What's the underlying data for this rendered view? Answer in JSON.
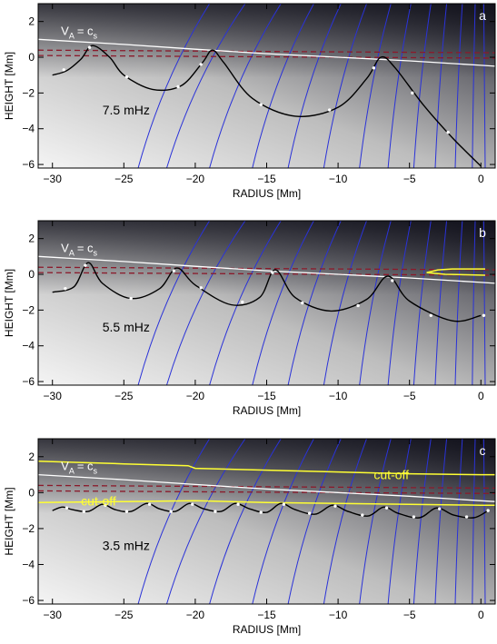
{
  "chart_data": [
    {
      "type": "line",
      "panel_label": "a",
      "frequency_label": "7.5 mHz",
      "xlabel": "RADIUS [Mm]",
      "ylabel": "HEIGHT [Mm]",
      "xlim": [
        -31,
        1
      ],
      "ylim": [
        -6.2,
        3
      ],
      "xticks": [
        -30,
        -25,
        -20,
        -15,
        -10,
        -5,
        0
      ],
      "yticks": [
        -6,
        -4,
        -2,
        0,
        2
      ],
      "annotations": [
        {
          "text": "V",
          "sub": "A",
          "eq": "= c",
          "sub2": "s"
        }
      ],
      "cut_off_labels": [],
      "vac_line": [
        [
          -31,
          1.0
        ],
        [
          -25,
          0.72
        ],
        [
          -20,
          0.45
        ],
        [
          -15,
          0.2
        ],
        [
          -10,
          0.0
        ],
        [
          -5,
          -0.2
        ],
        [
          0,
          -0.45
        ],
        [
          1,
          -0.5
        ]
      ],
      "dashed_lines": [
        0.3,
        0.0
      ],
      "ray_path": [
        [
          -30,
          -1.0
        ],
        [
          -29,
          -0.75
        ],
        [
          -28,
          -0.1
        ],
        [
          -27.2,
          0.65
        ],
        [
          -26,
          0.0
        ],
        [
          -25,
          -1.0
        ],
        [
          -23,
          -1.8
        ],
        [
          -21,
          -1.6
        ],
        [
          -19.5,
          -0.3
        ],
        [
          -18.8,
          0.4
        ],
        [
          -18,
          -0.3
        ],
        [
          -16,
          -2.3
        ],
        [
          -13,
          -3.3
        ],
        [
          -10,
          -2.8
        ],
        [
          -8,
          -1.2
        ],
        [
          -7,
          0.0
        ],
        [
          -6,
          -0.6
        ],
        [
          -4,
          -2.7
        ],
        [
          -2,
          -4.5
        ],
        [
          0,
          -6.1
        ]
      ],
      "dots": [
        [
          -29.2,
          -0.7
        ],
        [
          -27.4,
          0.55
        ],
        [
          -24.8,
          -1.1
        ],
        [
          -21.2,
          -1.65
        ],
        [
          -19.6,
          -0.4
        ],
        [
          -15.4,
          -2.65
        ],
        [
          -10.6,
          -2.95
        ],
        [
          -7.5,
          -0.6
        ],
        [
          -4.8,
          -2.0
        ],
        [
          -2.3,
          -4.2
        ]
      ],
      "field_lines": [
        [
          -24,
          -6.2,
          -19,
          3
        ],
        [
          -22,
          -6.2,
          -16.5,
          3
        ],
        [
          -19,
          -6.2,
          -14,
          3
        ],
        [
          -16,
          -6.2,
          -11.7,
          3
        ],
        [
          -13.5,
          -6.2,
          -9.8,
          3
        ],
        [
          -11,
          -6.2,
          -8,
          3
        ],
        [
          -8.5,
          -6.2,
          -6.3,
          3
        ],
        [
          -6.5,
          -6.2,
          -4.9,
          3
        ],
        [
          -4.7,
          -6.2,
          -3.5,
          3
        ],
        [
          -3.2,
          -6.2,
          -2.4,
          3
        ],
        [
          -1.8,
          -6.2,
          -1.3,
          3
        ],
        [
          -0.6,
          -6.2,
          -0.4,
          3
        ],
        [
          0.3,
          -6.2,
          0.2,
          3
        ]
      ],
      "yellow_lines": []
    },
    {
      "type": "line",
      "panel_label": "b",
      "frequency_label": "5.5 mHz",
      "xlabel": "RADIUS [Mm]",
      "ylabel": "HEIGHT [Mm]",
      "xlim": [
        -31,
        1
      ],
      "ylim": [
        -6.2,
        3
      ],
      "xticks": [
        -30,
        -25,
        -20,
        -15,
        -10,
        -5,
        0
      ],
      "yticks": [
        -6,
        -4,
        -2,
        0,
        2
      ],
      "annotations": [
        {
          "text": "V",
          "sub": "A",
          "eq": "= c",
          "sub2": "s"
        }
      ],
      "cut_off_labels": [],
      "vac_line": [
        [
          -31,
          1.0
        ],
        [
          -25,
          0.72
        ],
        [
          -20,
          0.45
        ],
        [
          -15,
          0.2
        ],
        [
          -10,
          0.0
        ],
        [
          -5,
          -0.2
        ],
        [
          0,
          -0.45
        ],
        [
          1,
          -0.5
        ]
      ],
      "dashed_lines": [
        0.3,
        0.0
      ],
      "ray_path": [
        [
          -30,
          -1.0
        ],
        [
          -28.5,
          -0.7
        ],
        [
          -27.5,
          0.65
        ],
        [
          -26.5,
          -0.5
        ],
        [
          -24.5,
          -1.35
        ],
        [
          -22.5,
          -0.8
        ],
        [
          -21.3,
          0.35
        ],
        [
          -20,
          -0.6
        ],
        [
          -17.5,
          -1.7
        ],
        [
          -15.5,
          -1.3
        ],
        [
          -14.4,
          0.25
        ],
        [
          -13,
          -1.3
        ],
        [
          -10.5,
          -2.05
        ],
        [
          -8,
          -1.4
        ],
        [
          -6.5,
          -0.1
        ],
        [
          -5,
          -1.5
        ],
        [
          -2,
          -2.6
        ],
        [
          0,
          -2.3
        ]
      ],
      "dots": [
        [
          -29.1,
          -0.8
        ],
        [
          -27.7,
          0.5
        ],
        [
          -24.5,
          -1.35
        ],
        [
          -21.5,
          0.2
        ],
        [
          -19.6,
          -0.75
        ],
        [
          -16.7,
          -1.55
        ],
        [
          -14.6,
          0.1
        ],
        [
          -12.5,
          -1.6
        ],
        [
          -8.6,
          -1.75
        ],
        [
          -6.2,
          -0.35
        ],
        [
          -3.5,
          -2.3
        ],
        [
          0.2,
          -2.3
        ]
      ],
      "field_lines": [
        [
          -24,
          -6.2,
          -19,
          3
        ],
        [
          -22,
          -6.2,
          -16.5,
          3
        ],
        [
          -19,
          -6.2,
          -14,
          3
        ],
        [
          -16,
          -6.2,
          -11.7,
          3
        ],
        [
          -13.5,
          -6.2,
          -9.8,
          3
        ],
        [
          -11,
          -6.2,
          -8,
          3
        ],
        [
          -8.5,
          -6.2,
          -6.3,
          3
        ],
        [
          -6.5,
          -6.2,
          -4.9,
          3
        ],
        [
          -4.7,
          -6.2,
          -3.5,
          3
        ],
        [
          -3.2,
          -6.2,
          -2.4,
          3
        ],
        [
          -1.8,
          -6.2,
          -1.3,
          3
        ],
        [
          -0.6,
          -6.2,
          -0.4,
          3
        ],
        [
          0.3,
          -6.2,
          0.2,
          3
        ]
      ],
      "yellow_lines": [
        [
          [
            -3.8,
            0.1
          ],
          [
            -3.0,
            0.25
          ],
          [
            -2.0,
            0.3
          ],
          [
            0.3,
            0.3
          ]
        ],
        [
          [
            -3.8,
            0.1
          ],
          [
            -2.5,
            0.0
          ],
          [
            0.3,
            -0.05
          ]
        ]
      ]
    },
    {
      "type": "line",
      "panel_label": "c",
      "frequency_label": "3.5 mHz",
      "xlabel": "RADIUS [Mm]",
      "ylabel": "HEIGHT [Mm]",
      "xlim": [
        -31,
        1
      ],
      "ylim": [
        -6.2,
        3
      ],
      "xticks": [
        -30,
        -25,
        -20,
        -15,
        -10,
        -5,
        0
      ],
      "yticks": [
        -6,
        -4,
        -2,
        0,
        2
      ],
      "annotations": [
        {
          "text": "V",
          "sub": "A",
          "eq": "= c",
          "sub2": "s"
        }
      ],
      "cut_off_labels": [
        {
          "text": "cut-off",
          "x": -7.5,
          "y": 1.0
        },
        {
          "text": "cut-off",
          "x": -28,
          "y": -0.45
        }
      ],
      "vac_line": [
        [
          -31,
          1.0
        ],
        [
          -25,
          0.72
        ],
        [
          -20,
          0.45
        ],
        [
          -15,
          0.2
        ],
        [
          -10,
          0.0
        ],
        [
          -5,
          -0.2
        ],
        [
          0,
          -0.45
        ],
        [
          1,
          -0.5
        ]
      ],
      "dashed_lines": [
        0.3,
        0.0
      ],
      "ray_path": [
        [
          -30,
          -1.0
        ],
        [
          -29.3,
          -0.8
        ],
        [
          -28.6,
          -0.95
        ],
        [
          -27.5,
          -1.05
        ],
        [
          -26.5,
          -0.65
        ],
        [
          -25.6,
          -0.95
        ],
        [
          -24.5,
          -1.05
        ],
        [
          -23.4,
          -0.6
        ],
        [
          -22.5,
          -0.9
        ],
        [
          -21.4,
          -1.05
        ],
        [
          -20.4,
          -0.6
        ],
        [
          -19.4,
          -0.9
        ],
        [
          -18.2,
          -1.05
        ],
        [
          -17.2,
          -0.6
        ],
        [
          -16.2,
          -0.9
        ],
        [
          -15.0,
          -1.1
        ],
        [
          -14.0,
          -0.6
        ],
        [
          -13.0,
          -0.95
        ],
        [
          -11.6,
          -1.2
        ],
        [
          -10.4,
          -0.7
        ],
        [
          -9.3,
          -1.05
        ],
        [
          -7.9,
          -1.3
        ],
        [
          -6.8,
          -0.8
        ],
        [
          -5.8,
          -1.15
        ],
        [
          -4.3,
          -1.4
        ],
        [
          -3.1,
          -0.85
        ],
        [
          -1.9,
          -1.25
        ],
        [
          -0.5,
          -1.4
        ],
        [
          0.5,
          -1.0
        ]
      ],
      "dots": [
        [
          -29.0,
          -0.85
        ],
        [
          -27.8,
          -1.05
        ],
        [
          -26.3,
          -0.7
        ],
        [
          -24.8,
          -1.05
        ],
        [
          -23.2,
          -0.65
        ],
        [
          -21.7,
          -1.05
        ],
        [
          -20.2,
          -0.65
        ],
        [
          -18.6,
          -1.05
        ],
        [
          -17.0,
          -0.65
        ],
        [
          -15.4,
          -1.1
        ],
        [
          -13.8,
          -0.65
        ],
        [
          -12.0,
          -1.15
        ],
        [
          -10.2,
          -0.75
        ],
        [
          -8.3,
          -1.25
        ],
        [
          -6.6,
          -0.85
        ],
        [
          -4.7,
          -1.35
        ],
        [
          -2.9,
          -0.9
        ],
        [
          -1.0,
          -1.35
        ],
        [
          0.5,
          -1.0
        ]
      ],
      "field_lines": [
        [
          -24,
          -6.2,
          -19,
          3
        ],
        [
          -22,
          -6.2,
          -16.5,
          3
        ],
        [
          -19,
          -6.2,
          -14,
          3
        ],
        [
          -16,
          -6.2,
          -11.7,
          3
        ],
        [
          -13.5,
          -6.2,
          -9.8,
          3
        ],
        [
          -11,
          -6.2,
          -8,
          3
        ],
        [
          -8.5,
          -6.2,
          -6.3,
          3
        ],
        [
          -6.5,
          -6.2,
          -4.9,
          3
        ],
        [
          -4.7,
          -6.2,
          -3.5,
          3
        ],
        [
          -3.2,
          -6.2,
          -2.4,
          3
        ],
        [
          -1.8,
          -6.2,
          -1.3,
          3
        ],
        [
          -0.6,
          -6.2,
          -0.4,
          3
        ],
        [
          0.3,
          -6.2,
          0.2,
          3
        ]
      ],
      "yellow_lines": [
        [
          [
            -31,
            1.75
          ],
          [
            -25,
            1.6
          ],
          [
            -20.5,
            1.5
          ],
          [
            -20,
            1.35
          ],
          [
            -15,
            1.25
          ],
          [
            -10,
            1.15
          ],
          [
            -5,
            1.05
          ],
          [
            0,
            1.0
          ],
          [
            1,
            1.0
          ]
        ],
        [
          [
            -31,
            -0.55
          ],
          [
            -25,
            -0.5
          ],
          [
            -20,
            -0.45
          ],
          [
            -15,
            -0.55
          ],
          [
            -10,
            -0.6
          ],
          [
            -5,
            -0.65
          ],
          [
            0,
            -0.7
          ],
          [
            1,
            -0.7
          ]
        ]
      ]
    }
  ],
  "colors": {
    "field_line": "#2a32d8",
    "ray_path": "#000000",
    "vac_line": "#ffffff",
    "dashed_line": "#8b1a2b",
    "cut_off": "#ffff33",
    "dots": "#ffffff"
  }
}
